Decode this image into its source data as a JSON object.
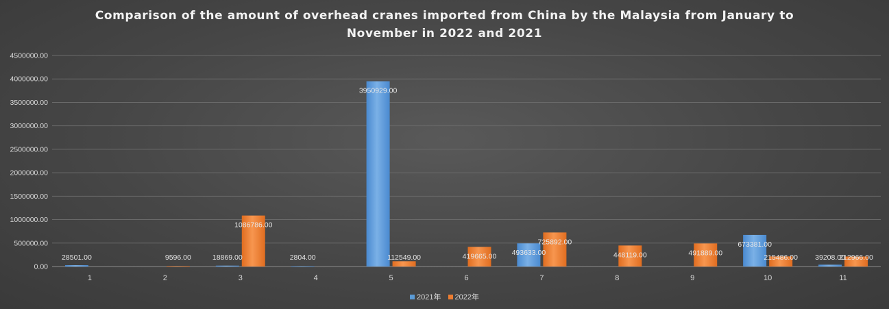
{
  "chart_data": {
    "type": "bar",
    "title_lines": [
      "Comparison of the amount of overhead cranes imported from China by the Malaysia from January to",
      "November in 2022 and 2021"
    ],
    "categories": [
      "1",
      "2",
      "3",
      "4",
      "5",
      "6",
      "7",
      "8",
      "9",
      "10",
      "11"
    ],
    "series": [
      {
        "name": "2021年",
        "color": "#5b9bd5",
        "values": [
          28501,
          0,
          18869,
          2804,
          3950929,
          0,
          493633,
          0,
          0,
          673381,
          39208
        ],
        "labels": [
          "28501.00",
          "",
          "18869.00",
          "2804.00",
          "3950929.00",
          "",
          "493633.00",
          "",
          "",
          "673381.00",
          "39208.00"
        ]
      },
      {
        "name": "2022年",
        "color": "#ed7d31",
        "values": [
          0,
          9596,
          1086786,
          0,
          112549,
          419665,
          725892,
          448119,
          491889,
          215486,
          212966
        ],
        "labels": [
          "",
          "9596.00",
          "1086786.00",
          "",
          "112549.00",
          "419665.00",
          "725892.00",
          "448119.00",
          "491889.00",
          "215486.00",
          "212966.00"
        ]
      }
    ],
    "y_ticks": [
      "0.00",
      "500000.00",
      "1000000.00",
      "1500000.00",
      "2000000.00",
      "2500000.00",
      "3000000.00",
      "3500000.00",
      "4000000.00",
      "4500000.00"
    ],
    "ylim": [
      0,
      4500000
    ],
    "grid": true,
    "legend_position": "bottom"
  }
}
